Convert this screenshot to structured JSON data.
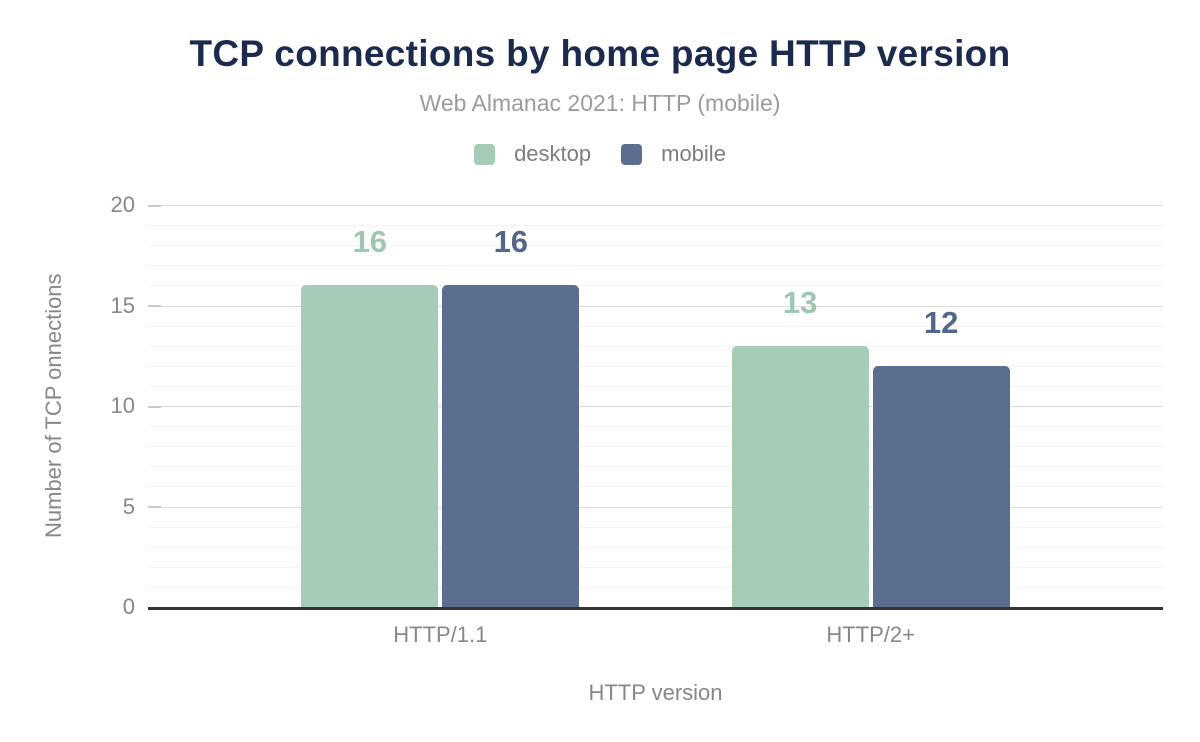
{
  "chart_data": {
    "type": "bar",
    "title": "TCP connections by home page HTTP version",
    "subtitle": "Web Almanac 2021: HTTP (mobile)",
    "categories": [
      "HTTP/1.1",
      "HTTP/2+"
    ],
    "series": [
      {
        "name": "desktop",
        "values": [
          16,
          13
        ],
        "color": "#a6cbb6",
        "label_color": "#9fc7b0"
      },
      {
        "name": "mobile",
        "values": [
          16,
          12
        ],
        "color": "#5b6e90",
        "label_color": "#53678b"
      }
    ],
    "xlabel": "HTTP version",
    "ylabel": "Number of TCP onnections",
    "ylim": [
      0,
      20
    ],
    "yticks": [
      0,
      5,
      10,
      15,
      20
    ],
    "grid": "horizontal, minor line every 1 unit, major line every 5 units",
    "legend_position": "top center",
    "value_labels": true,
    "colors": {
      "title": "#1c2b4d",
      "subtitle": "#9b9b9b",
      "axis_text": "#878787",
      "axis_line": "#333333",
      "major_grid": "#dadada",
      "minor_grid": "#f3f3f3"
    }
  }
}
